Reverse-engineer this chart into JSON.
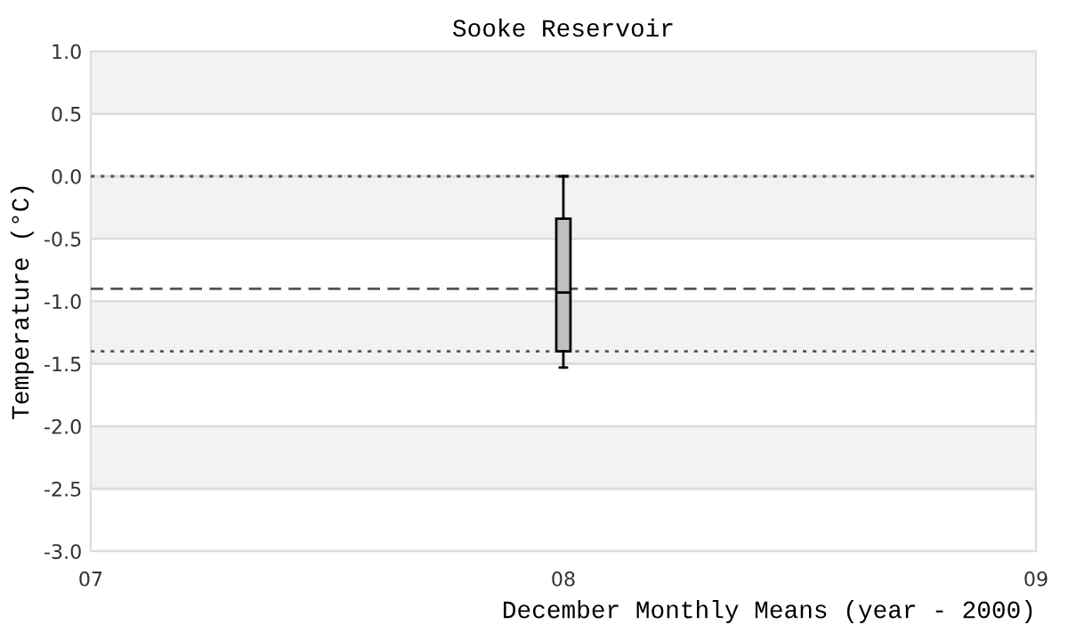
{
  "chart_data": {
    "type": "box",
    "title": "Sooke Reservoir",
    "xlabel": "December Monthly Means (year - 2000)",
    "ylabel": "Temperature (°C)",
    "x": [
      8
    ],
    "series": [
      {
        "color": "#c0c0c0",
        "boxes": [
          {
            "low": -1.53,
            "q1": -1.4,
            "median": -0.93,
            "q3": -0.34,
            "high": 0.0
          }
        ]
      }
    ],
    "xlim": [
      7,
      9
    ],
    "xticks": [
      {
        "value": 7,
        "label": "07"
      },
      {
        "value": 8,
        "label": "08"
      },
      {
        "value": 9,
        "label": "09"
      }
    ],
    "ylim": [
      -3.0,
      1.0
    ],
    "yticks": [
      {
        "value": -3.0,
        "label": "-3.0"
      },
      {
        "value": -2.5,
        "label": "-2.5"
      },
      {
        "value": -2.0,
        "label": "-2.0"
      },
      {
        "value": -1.5,
        "label": "-1.5"
      },
      {
        "value": -1.0,
        "label": "-1.0"
      },
      {
        "value": -0.5,
        "label": "-0.5"
      },
      {
        "value": 0.0,
        "label": "0.0"
      },
      {
        "value": 0.5,
        "label": "0.5"
      },
      {
        "value": 1.0,
        "label": "1.0"
      }
    ],
    "grid": "y",
    "bands": [
      {
        "axis": "y",
        "from": 0.5,
        "to": 1.0,
        "color": "#f2f2f2"
      },
      {
        "axis": "y",
        "from": -0.5,
        "to": 0.0,
        "color": "#f2f2f2"
      },
      {
        "axis": "y",
        "from": -1.5,
        "to": -1.0,
        "color": "#f2f2f2"
      },
      {
        "axis": "y",
        "from": -2.5,
        "to": -2.0,
        "color": "#f2f2f2"
      }
    ],
    "ref_lines": [
      {
        "axis": "y",
        "value": 0.0,
        "line_style": "dotted",
        "color": "#555555"
      },
      {
        "axis": "y",
        "value": -0.9,
        "line_style": "dashed",
        "color": "#555555"
      },
      {
        "axis": "y",
        "value": -1.4,
        "line_style": "dotted",
        "color": "#555555"
      }
    ]
  }
}
